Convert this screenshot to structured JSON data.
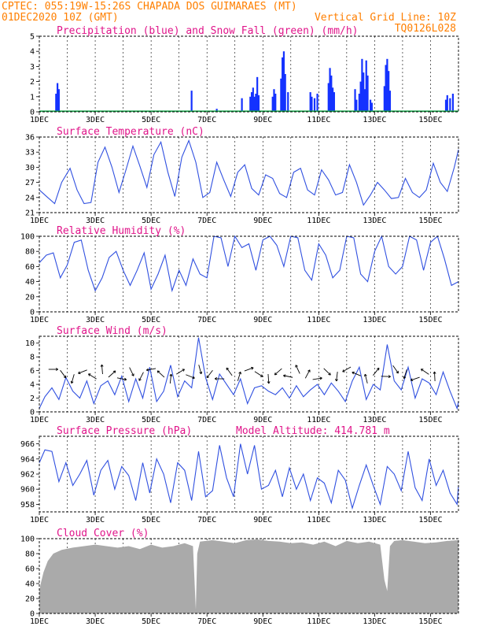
{
  "header": {
    "line1": "CPTEC:   055:19W-15:26S  CHAPADA DOS GUIMARAES (MT)",
    "line2_left": "01DEC2020 10Z (GMT)",
    "line2_right": "Vertical Grid Line: 10Z",
    "line3_right": "TQ0126L028"
  },
  "colors": {
    "header": "#ff7f00",
    "title": "#e0158a",
    "precip": "#1432ff",
    "snow": "#16a34a",
    "line": "#3050e0",
    "cloud": "#aaaaaa",
    "arrow": "#000000"
  },
  "chart_data": [
    {
      "type": "bar",
      "title": "Precipitation (blue) and Snow Fall (green) (mm/h)",
      "xticks": [
        "1DEC",
        "3DEC",
        "5DEC",
        "7DEC",
        "9DEC",
        "11DEC",
        "13DEC",
        "15DEC"
      ],
      "xrange_days": [
        1,
        16
      ],
      "ylim": [
        0,
        5
      ],
      "yticks": [
        0,
        1,
        2,
        3,
        4,
        5
      ],
      "series": [
        {
          "name": "Precipitation",
          "x": [
            1.6,
            1.65,
            1.7,
            6.45,
            7.35,
            8.25,
            8.55,
            8.6,
            8.65,
            8.7,
            8.75,
            8.8,
            8.85,
            9.35,
            9.4,
            9.45,
            9.65,
            9.7,
            9.75,
            9.8,
            9.9,
            10.7,
            10.75,
            10.85,
            10.95,
            11.35,
            11.4,
            11.45,
            11.5,
            11.55,
            12.3,
            12.35,
            12.45,
            12.5,
            12.55,
            12.6,
            12.65,
            12.7,
            12.75,
            12.85,
            12.9,
            13.35,
            13.4,
            13.45,
            13.5,
            13.55,
            15.55,
            15.6,
            15.7,
            15.8
          ],
          "values": [
            1.2,
            1.9,
            1.5,
            1.4,
            0.2,
            0.9,
            1.0,
            1.3,
            1.6,
            1.0,
            1.2,
            2.3,
            1.1,
            1.0,
            1.5,
            1.2,
            2.2,
            3.6,
            4.0,
            2.5,
            1.3,
            1.3,
            1.0,
            0.9,
            1.2,
            1.9,
            2.9,
            2.4,
            1.6,
            1.3,
            1.5,
            0.8,
            1.2,
            2.0,
            3.5,
            2.6,
            1.5,
            3.4,
            2.4,
            0.8,
            0.6,
            1.7,
            3.1,
            3.5,
            2.7,
            1.4,
            0.8,
            1.1,
            0.9,
            1.2
          ]
        },
        {
          "name": "Snow Fall",
          "values": [
            0
          ]
        }
      ]
    },
    {
      "type": "line",
      "title": "Surface Temperature (nC)",
      "ylim": [
        21,
        36
      ],
      "yticks": [
        21,
        24,
        27,
        30,
        33,
        36
      ],
      "x": [
        1.0,
        1.3,
        1.55,
        1.8,
        2.1,
        2.35,
        2.6,
        2.85,
        3.1,
        3.35,
        3.6,
        3.85,
        4.1,
        4.35,
        4.6,
        4.85,
        5.1,
        5.35,
        5.6,
        5.85,
        6.1,
        6.35,
        6.6,
        6.85,
        7.1,
        7.35,
        7.6,
        7.85,
        8.1,
        8.35,
        8.6,
        8.85,
        9.1,
        9.35,
        9.6,
        9.85,
        10.1,
        10.35,
        10.6,
        10.85,
        11.1,
        11.35,
        11.6,
        11.85,
        12.1,
        12.35,
        12.6,
        12.85,
        13.1,
        13.35,
        13.6,
        13.85,
        14.1,
        14.35,
        14.6,
        14.85,
        15.1,
        15.35,
        15.6,
        15.85,
        16.0
      ],
      "values": [
        25.5,
        24.0,
        22.8,
        27.0,
        29.8,
        25.5,
        22.8,
        23.0,
        31.0,
        34.0,
        30.0,
        25.0,
        29.5,
        34.2,
        30.2,
        26.0,
        32.5,
        35.0,
        29.0,
        24.2,
        32.0,
        35.3,
        31.0,
        24.0,
        25.0,
        31.0,
        27.5,
        24.2,
        29.0,
        30.5,
        25.8,
        24.5,
        28.5,
        27.8,
        24.8,
        24.0,
        29.0,
        29.8,
        25.5,
        24.5,
        29.5,
        27.5,
        24.5,
        25.0,
        30.5,
        27.0,
        22.5,
        24.5,
        27.0,
        25.5,
        23.8,
        24.0,
        27.8,
        25.0,
        24.0,
        25.5,
        30.8,
        27.0,
        25.2,
        30.0,
        33.5
      ]
    },
    {
      "type": "line",
      "title": "Relative Humidity (%)",
      "ylim": [
        0,
        100
      ],
      "yticks": [
        0,
        20,
        40,
        60,
        80,
        100
      ],
      "x": [
        1.0,
        1.25,
        1.5,
        1.75,
        2.0,
        2.25,
        2.5,
        2.75,
        3.0,
        3.25,
        3.5,
        3.75,
        4.0,
        4.25,
        4.5,
        4.75,
        5.0,
        5.25,
        5.5,
        5.75,
        6.0,
        6.25,
        6.5,
        6.75,
        7.0,
        7.25,
        7.5,
        7.75,
        8.0,
        8.25,
        8.5,
        8.75,
        9.0,
        9.25,
        9.5,
        9.75,
        10.0,
        10.25,
        10.5,
        10.75,
        11.0,
        11.25,
        11.5,
        11.75,
        12.0,
        12.25,
        12.5,
        12.75,
        13.0,
        13.25,
        13.5,
        13.75,
        14.0,
        14.25,
        14.5,
        14.75,
        15.0,
        15.25,
        15.5,
        15.75,
        16.0
      ],
      "values": [
        65,
        75,
        78,
        45,
        62,
        92,
        95,
        55,
        28,
        45,
        72,
        80,
        55,
        35,
        55,
        78,
        30,
        50,
        75,
        28,
        55,
        35,
        70,
        50,
        45,
        100,
        98,
        60,
        100,
        85,
        90,
        55,
        95,
        100,
        88,
        60,
        100,
        98,
        55,
        42,
        90,
        75,
        45,
        55,
        100,
        98,
        50,
        40,
        80,
        100,
        60,
        50,
        60,
        100,
        95,
        55,
        92,
        100,
        70,
        35,
        40
      ]
    },
    {
      "type": "line",
      "title": "Surface Wind (m/s)",
      "ylim": [
        0,
        11
      ],
      "yticks": [
        0,
        2,
        4,
        6,
        8,
        10
      ],
      "x": [
        1.0,
        1.2,
        1.45,
        1.7,
        1.95,
        2.2,
        2.45,
        2.7,
        2.95,
        3.2,
        3.45,
        3.7,
        3.95,
        4.2,
        4.45,
        4.7,
        4.95,
        5.2,
        5.45,
        5.7,
        5.95,
        6.2,
        6.45,
        6.7,
        6.95,
        7.2,
        7.45,
        7.7,
        7.95,
        8.2,
        8.45,
        8.7,
        8.95,
        9.2,
        9.45,
        9.7,
        9.95,
        10.2,
        10.45,
        10.7,
        10.95,
        11.2,
        11.45,
        11.7,
        11.95,
        12.2,
        12.45,
        12.7,
        12.95,
        13.2,
        13.45,
        13.7,
        13.95,
        14.2,
        14.45,
        14.7,
        14.95,
        15.2,
        15.45,
        15.7,
        15.95,
        16.0
      ],
      "values": [
        0.5,
        2.2,
        3.5,
        1.8,
        5.0,
        3.0,
        2.0,
        4.5,
        1.2,
        3.8,
        4.5,
        2.5,
        5.2,
        1.5,
        4.8,
        2.0,
        6.5,
        1.5,
        3.0,
        6.8,
        2.2,
        4.5,
        3.5,
        10.8,
        5.0,
        1.8,
        5.5,
        4.0,
        2.5,
        4.8,
        1.2,
        3.5,
        3.8,
        3.0,
        2.5,
        3.5,
        2.0,
        3.8,
        2.2,
        3.2,
        4.0,
        2.5,
        4.2,
        3.0,
        1.5,
        4.5,
        6.5,
        1.8,
        4.0,
        3.2,
        9.8,
        4.5,
        3.2,
        6.5,
        2.0,
        4.8,
        4.2,
        2.5,
        5.8,
        3.0,
        0.5,
        1.5
      ]
    },
    {
      "type": "line",
      "title": "Surface Pressure (hPa)",
      "annotation": "Model Altitude: 414.781  m",
      "ylim": [
        957,
        967
      ],
      "yticks": [
        958,
        960,
        962,
        964,
        966
      ],
      "x": [
        1.0,
        1.2,
        1.45,
        1.7,
        1.95,
        2.2,
        2.45,
        2.7,
        2.95,
        3.2,
        3.45,
        3.7,
        3.95,
        4.2,
        4.45,
        4.7,
        4.95,
        5.2,
        5.45,
        5.7,
        5.95,
        6.2,
        6.45,
        6.7,
        6.95,
        7.2,
        7.45,
        7.7,
        7.95,
        8.2,
        8.45,
        8.7,
        8.95,
        9.2,
        9.45,
        9.7,
        9.95,
        10.2,
        10.45,
        10.7,
        10.95,
        11.2,
        11.45,
        11.7,
        11.95,
        12.2,
        12.45,
        12.7,
        12.95,
        13.2,
        13.45,
        13.7,
        13.95,
        14.2,
        14.45,
        14.7,
        14.95,
        15.2,
        15.45,
        15.7,
        15.95,
        16.0
      ],
      "values": [
        963.5,
        965.2,
        965.0,
        961.0,
        963.5,
        960.5,
        962.0,
        963.8,
        959.2,
        962.5,
        963.8,
        960.0,
        963.0,
        961.8,
        958.5,
        963.5,
        959.5,
        964.0,
        962.0,
        958.2,
        963.5,
        962.5,
        958.5,
        965.0,
        959.0,
        959.8,
        965.8,
        961.5,
        959.0,
        966.0,
        962.0,
        965.8,
        960.0,
        960.5,
        962.5,
        959.0,
        962.8,
        960.0,
        962.0,
        958.5,
        961.5,
        960.8,
        958.2,
        962.5,
        961.2,
        957.5,
        960.5,
        963.2,
        960.5,
        958.0,
        963.0,
        962.0,
        959.8,
        965.0,
        960.2,
        958.5,
        964.0,
        960.5,
        962.5,
        959.5,
        958.0,
        960.5
      ]
    },
    {
      "type": "area",
      "title": "Cloud Cover (%)",
      "ylim": [
        0,
        100
      ],
      "yticks": [
        0,
        20,
        40,
        60,
        80,
        100
      ],
      "x": [
        1.0,
        1.05,
        1.15,
        1.3,
        1.5,
        1.8,
        2.2,
        2.6,
        3.0,
        3.4,
        3.8,
        4.2,
        4.6,
        5.0,
        5.4,
        5.8,
        6.2,
        6.5,
        6.6,
        6.65,
        6.75,
        7.2,
        7.6,
        8.0,
        8.4,
        8.8,
        9.2,
        9.6,
        10.0,
        10.4,
        10.8,
        11.2,
        11.6,
        12.0,
        12.4,
        12.8,
        13.2,
        13.35,
        13.45,
        13.55,
        13.7,
        14.0,
        14.4,
        14.8,
        15.2,
        15.6,
        16.0
      ],
      "values": [
        30,
        40,
        55,
        70,
        80,
        85,
        88,
        90,
        92,
        90,
        88,
        90,
        86,
        92,
        88,
        90,
        94,
        90,
        5,
        80,
        96,
        98,
        96,
        94,
        98,
        99,
        97,
        96,
        94,
        95,
        92,
        96,
        90,
        97,
        94,
        96,
        92,
        45,
        30,
        90,
        97,
        98,
        96,
        94,
        95,
        97,
        98
      ]
    }
  ]
}
